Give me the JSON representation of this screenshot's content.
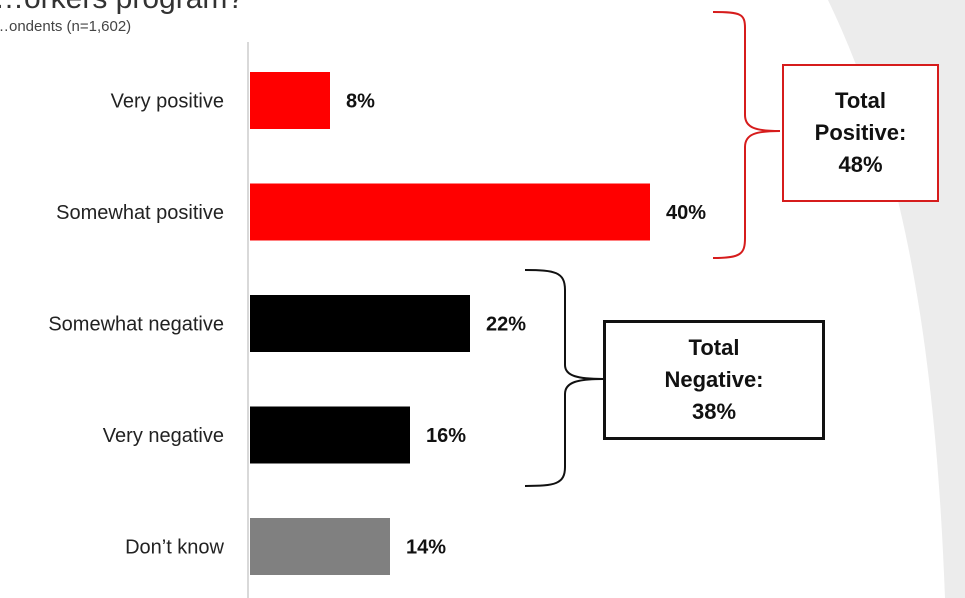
{
  "header": {
    "title": "…orkers program?",
    "subtitle": "…ondents (n=1,602)"
  },
  "chart_data": {
    "type": "bar",
    "orientation": "horizontal",
    "categories": [
      "Very positive",
      "Somewhat positive",
      "Somewhat negative",
      "Very negative",
      "Don’t know"
    ],
    "values": [
      8,
      40,
      22,
      16,
      14
    ],
    "value_labels": [
      "8%",
      "40%",
      "22%",
      "16%",
      "14%"
    ],
    "colors": [
      "#ff0000",
      "#ff0000",
      "#000000",
      "#000000",
      "#808080"
    ],
    "xlim": [
      0,
      50
    ],
    "grid": false,
    "legend": "none"
  },
  "summary": {
    "positive": {
      "line1": "Total",
      "line2": "Positive:",
      "line3": "48%",
      "border_color": "#d61c1c"
    },
    "negative": {
      "line1": "Total",
      "line2": "Negative:",
      "line3": "38%",
      "border_color": "#111111"
    }
  }
}
